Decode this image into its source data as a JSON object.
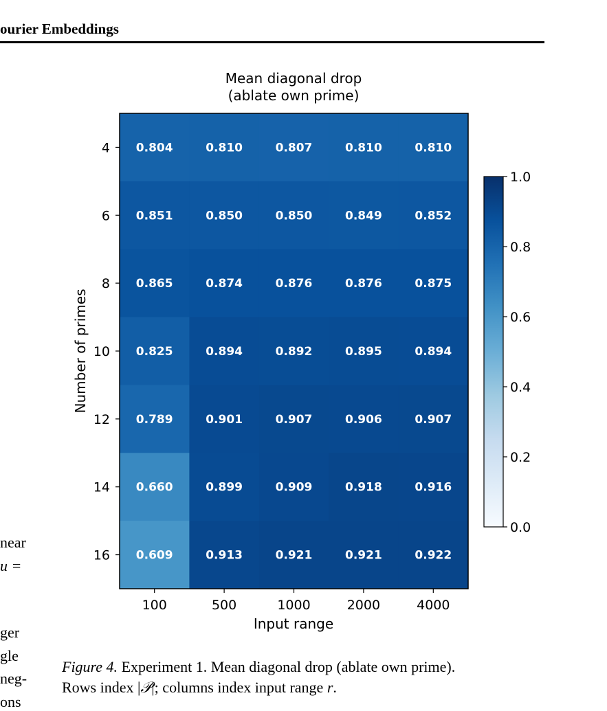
{
  "page": {
    "running_head": "ourier Embeddings",
    "left_margin_fragments": [
      "near",
      "u =",
      "ger",
      "gle",
      "neg-",
      "ons"
    ]
  },
  "chart_data": {
    "type": "heatmap",
    "title": "Mean diagonal drop\n(ablate own prime)",
    "xlabel": "Input range",
    "ylabel": "Number of primes",
    "x": [
      "100",
      "500",
      "1000",
      "2000",
      "4000"
    ],
    "y": [
      "4",
      "6",
      "8",
      "10",
      "12",
      "14",
      "16"
    ],
    "values": [
      [
        0.804,
        0.81,
        0.807,
        0.81,
        0.81
      ],
      [
        0.851,
        0.85,
        0.85,
        0.849,
        0.852
      ],
      [
        0.865,
        0.874,
        0.876,
        0.876,
        0.875
      ],
      [
        0.825,
        0.894,
        0.892,
        0.895,
        0.894
      ],
      [
        0.789,
        0.901,
        0.907,
        0.906,
        0.907
      ],
      [
        0.66,
        0.899,
        0.909,
        0.918,
        0.916
      ],
      [
        0.609,
        0.913,
        0.921,
        0.921,
        0.922
      ]
    ],
    "value_labels": [
      [
        "0.804",
        "0.810",
        "0.807",
        "0.810",
        "0.810"
      ],
      [
        "0.851",
        "0.850",
        "0.850",
        "0.849",
        "0.852"
      ],
      [
        "0.865",
        "0.874",
        "0.876",
        "0.876",
        "0.875"
      ],
      [
        "0.825",
        "0.894",
        "0.892",
        "0.895",
        "0.894"
      ],
      [
        "0.789",
        "0.901",
        "0.907",
        "0.906",
        "0.907"
      ],
      [
        "0.660",
        "0.899",
        "0.909",
        "0.918",
        "0.916"
      ],
      [
        "0.609",
        "0.913",
        "0.921",
        "0.921",
        "0.922"
      ]
    ],
    "colormap": "Blues",
    "vmin": 0.0,
    "vmax": 1.0,
    "colorbar_ticks": [
      "0.0",
      "0.2",
      "0.4",
      "0.6",
      "0.8",
      "1.0"
    ],
    "colorbar_placement": "right"
  },
  "caption": {
    "label": "Figure 4.",
    "line1_rest": " Experiment 1. Mean diagonal drop (ablate own prime).",
    "line2_a": "Rows index |",
    "line2_p": "𝒫",
    "line2_b": "|; columns index input range ",
    "line2_r": "r",
    "line2_c": "."
  }
}
